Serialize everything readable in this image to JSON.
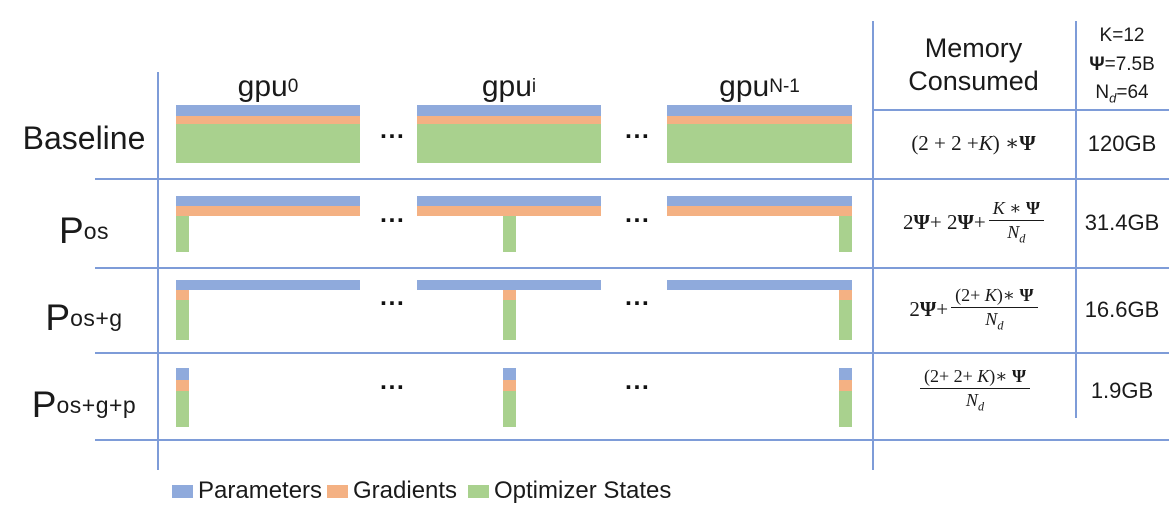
{
  "colors": {
    "parameters": "#8FAADC",
    "gradients": "#F4B183",
    "optimizer_states": "#A9D18E",
    "grid": "#7E9CD8",
    "text": "#1a1a1a"
  },
  "header": {
    "line1": "Memory",
    "line2": "Consumed"
  },
  "constants": [
    {
      "tokens": [
        [
          "n",
          "K=12"
        ]
      ]
    },
    {
      "tokens": [
        [
          "b",
          "Ψ"
        ],
        [
          "n",
          "=7.5B"
        ]
      ]
    },
    {
      "tokens": [
        [
          "n",
          "N"
        ],
        [
          "sub",
          "d"
        ],
        [
          "n",
          "=64"
        ]
      ]
    }
  ],
  "gpu_columns": [
    {
      "base": "gpu",
      "sub": "0"
    },
    {
      "base": "gpu",
      "sub": "i"
    },
    {
      "base": "gpu",
      "sub": "N-1"
    }
  ],
  "dots": "...",
  "rows": [
    {
      "label": {
        "base": "Baseline",
        "sub": ""
      },
      "value": "120GB",
      "formula": {
        "pre": [
          [
            "n",
            "(2 + 2 + "
          ],
          [
            "i",
            "K"
          ],
          [
            "n",
            ") ∗ "
          ],
          [
            "b",
            "Ψ"
          ]
        ],
        "frac": null
      },
      "bars": {
        "full": [
          "parameters",
          "gradients",
          "optimizer_states"
        ],
        "stub": []
      }
    },
    {
      "label": {
        "base": "P",
        "sub": "os"
      },
      "value": "31.4GB",
      "formula": {
        "pre": [
          [
            "n",
            "2"
          ],
          [
            "b",
            "Ψ"
          ],
          [
            "n",
            " + 2"
          ],
          [
            "b",
            "Ψ"
          ],
          [
            "n",
            " + "
          ]
        ],
        "frac": {
          "num": [
            [
              "i",
              "K"
            ],
            [
              "n",
              " ∗ "
            ],
            [
              "b",
              "Ψ"
            ]
          ],
          "den": [
            [
              "i",
              "N"
            ],
            [
              "sub",
              "d"
            ]
          ]
        }
      },
      "bars": {
        "full": [
          "parameters",
          "gradients"
        ],
        "stub": [
          "optimizer_states"
        ]
      }
    },
    {
      "label": {
        "base": "P",
        "sub": "os+g"
      },
      "value": "16.6GB",
      "formula": {
        "pre": [
          [
            "n",
            "2"
          ],
          [
            "b",
            "Ψ"
          ],
          [
            "n",
            " + "
          ]
        ],
        "frac": {
          "num": [
            [
              "n",
              "(2+ "
            ],
            [
              "i",
              "K"
            ],
            [
              "n",
              ")∗ "
            ],
            [
              "b",
              "Ψ"
            ]
          ],
          "den": [
            [
              "i",
              "N"
            ],
            [
              "sub",
              "d"
            ]
          ]
        }
      },
      "bars": {
        "full": [
          "parameters"
        ],
        "stub": [
          "gradients",
          "optimizer_states"
        ]
      }
    },
    {
      "label": {
        "base": "P",
        "sub": "os+g+p"
      },
      "value": "1.9GB",
      "formula": {
        "pre": [],
        "frac": {
          "num": [
            [
              "n",
              "(2+ 2+ "
            ],
            [
              "i",
              "K"
            ],
            [
              "n",
              ")∗ "
            ],
            [
              "b",
              "Ψ"
            ]
          ],
          "den": [
            [
              "i",
              "N"
            ],
            [
              "sub",
              "d"
            ]
          ]
        }
      },
      "bars": {
        "full": [],
        "stub": [
          "parameters",
          "gradients",
          "optimizer_states"
        ]
      }
    }
  ],
  "legend": [
    {
      "label": "Parameters",
      "key": "parameters"
    },
    {
      "label": "Gradients",
      "key": "gradients"
    },
    {
      "label": "Optimizer States",
      "key": "optimizer_states"
    }
  ]
}
